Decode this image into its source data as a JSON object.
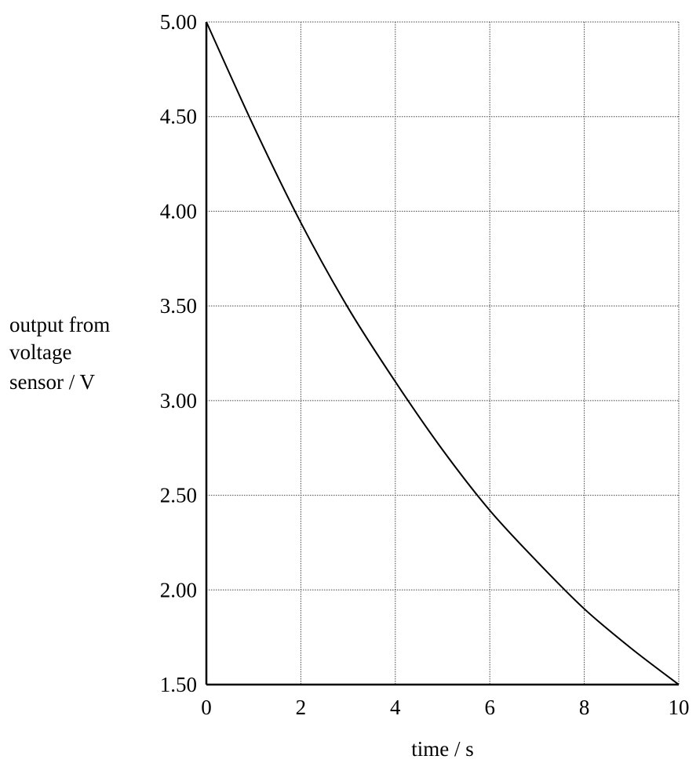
{
  "chart_data": {
    "type": "line",
    "xlabel": "time / s",
    "ylabel_lines": [
      "output from",
      "voltage",
      "sensor / V"
    ],
    "xlim": [
      0,
      10
    ],
    "ylim": [
      1.5,
      5.0
    ],
    "x_ticks": [
      "0",
      "2",
      "4",
      "6",
      "8",
      "10"
    ],
    "y_ticks": [
      "1.50",
      "2.00",
      "2.50",
      "3.00",
      "3.50",
      "4.00",
      "4.50",
      "5.00"
    ],
    "grid": true,
    "series": [
      {
        "x": [
          0,
          1,
          2,
          3,
          4,
          5,
          6,
          7,
          8,
          9,
          10
        ],
        "y": [
          5.0,
          4.45,
          3.94,
          3.49,
          3.1,
          2.74,
          2.42,
          2.15,
          1.9,
          1.69,
          1.5
        ]
      }
    ]
  }
}
